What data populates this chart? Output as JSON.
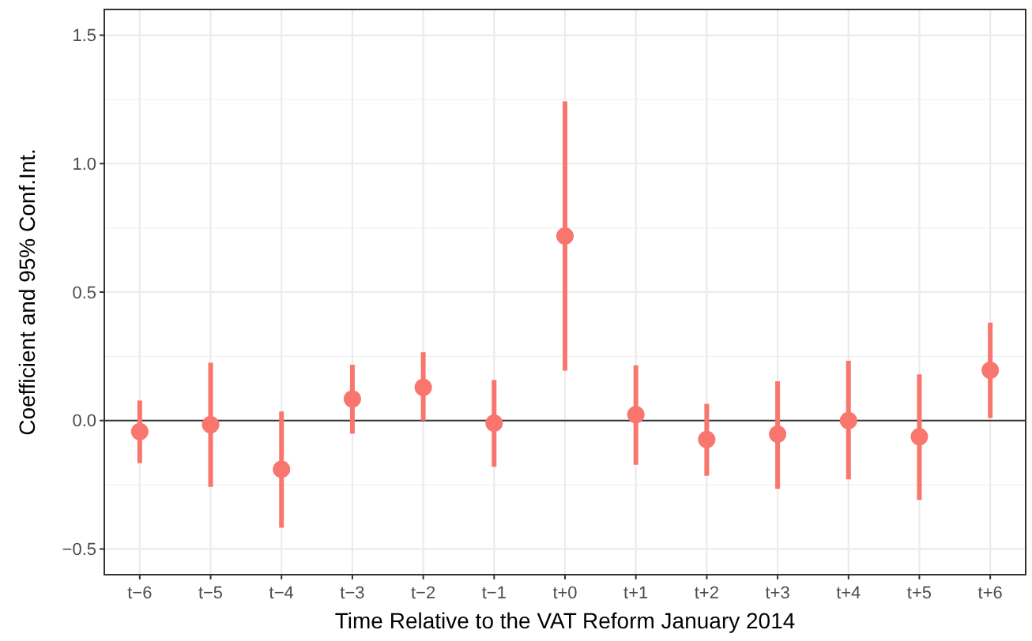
{
  "chart_data": {
    "type": "scatter",
    "xlabel": "Time Relative to the VAT Reform January 2014",
    "ylabel": "Coefficient and 95% Conf.Int.",
    "categories": [
      "t−6",
      "t−5",
      "t−4",
      "t−3",
      "t−2",
      "t−1",
      "t+0",
      "t+1",
      "t+2",
      "t+3",
      "t+4",
      "t+5",
      "t+6"
    ],
    "values": [
      -0.043,
      -0.016,
      -0.19,
      0.084,
      0.129,
      -0.01,
      0.718,
      0.023,
      -0.074,
      -0.053,
      0.0,
      -0.063,
      0.196
    ],
    "errors": [
      [
        -0.166,
        0.078
      ],
      [
        -0.258,
        0.225
      ],
      [
        -0.417,
        0.035
      ],
      [
        -0.051,
        0.217
      ],
      [
        0.0,
        0.266
      ],
      [
        -0.18,
        0.158
      ],
      [
        0.194,
        1.242
      ],
      [
        -0.172,
        0.215
      ],
      [
        -0.215,
        0.065
      ],
      [
        -0.266,
        0.153
      ],
      [
        -0.229,
        0.233
      ],
      [
        -0.309,
        0.18
      ],
      [
        0.01,
        0.381
      ]
    ],
    "color": "#f8766d",
    "marker": "circle",
    "ylim": [
      -0.6,
      1.6
    ],
    "yticks": [
      {
        "value": -0.5,
        "label": "−0.5"
      },
      {
        "value": 0,
        "label": "0.0"
      },
      {
        "value": 0.5,
        "label": "0.5"
      },
      {
        "value": 1,
        "label": "1.0"
      },
      {
        "value": 1.5,
        "label": "1.5"
      }
    ],
    "grid": true,
    "ref_lines": [
      {
        "axis": "y",
        "value": 0,
        "color": "#333333"
      }
    ]
  }
}
